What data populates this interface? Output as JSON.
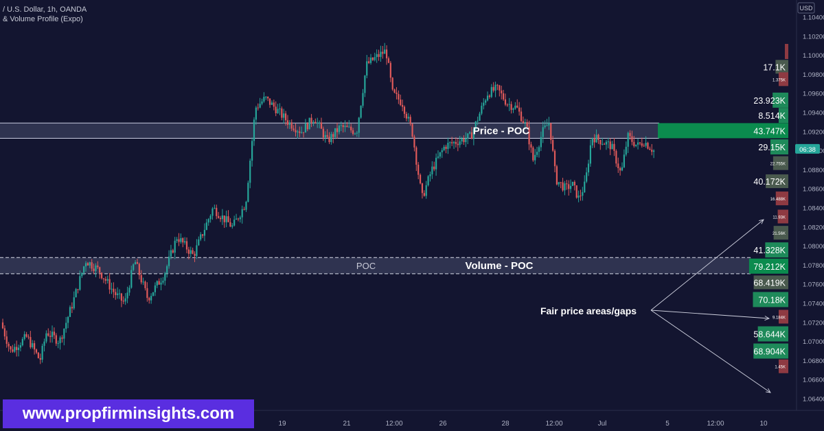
{
  "header": {
    "symbol_line": "/ U.S. Dollar, 1h, OANDA",
    "indicator_line": "& Volume Profile (Expo)"
  },
  "currency": "USD",
  "current_time_badge": "06:38",
  "watermark": "www.propfirminsights.com",
  "colors": {
    "background": "#131530",
    "bull": "#26a69a",
    "bear": "#e05a5a",
    "vp_green": "#1e8a5a",
    "vp_big": "#0b8b4e",
    "vp_red": "#8e3a42",
    "label_bg": "#4a5a4e",
    "zone_fill": "rgba(110,115,150,0.32)",
    "badge": "#26a69a",
    "watermark_bg": "#5a2ee0"
  },
  "annotations": {
    "price_poc": "Price - POC",
    "volume_poc": "Volume - POC",
    "poc_small": "POC",
    "fair_price": "Fair price areas/gaps"
  },
  "chart_data": {
    "type": "candlestick",
    "title": "",
    "y_axis": {
      "range": [
        1.0625,
        1.1057
      ],
      "ticks": [
        "1.10400",
        "1.10200",
        "1.10000",
        "1.09800",
        "1.09600",
        "1.09400",
        "1.09200",
        "1.09000",
        "1.08800",
        "1.08600",
        "1.08400",
        "1.08200",
        "1.08000",
        "1.07800",
        "1.07600",
        "1.07400",
        "1.07200",
        "1.07000",
        "1.06800",
        "1.06600",
        "1.06400"
      ]
    },
    "x_axis": {
      "ticks": [
        "19",
        "21",
        "12:00",
        "26",
        "28",
        "12:00",
        "Jul",
        "5",
        "12:00",
        "10"
      ]
    },
    "price_path": [
      [
        0,
        1.072
      ],
      [
        0.015,
        1.069
      ],
      [
        0.04,
        1.0705
      ],
      [
        0.06,
        1.068
      ],
      [
        0.07,
        1.071
      ],
      [
        0.09,
        1.07
      ],
      [
        0.11,
        1.074
      ],
      [
        0.13,
        1.0785
      ],
      [
        0.15,
        1.0775
      ],
      [
        0.175,
        1.075
      ],
      [
        0.19,
        1.074
      ],
      [
        0.205,
        1.0785
      ],
      [
        0.225,
        1.0745
      ],
      [
        0.25,
        1.077
      ],
      [
        0.27,
        1.081
      ],
      [
        0.295,
        1.079
      ],
      [
        0.325,
        1.084
      ],
      [
        0.355,
        1.082
      ],
      [
        0.375,
        1.0845
      ],
      [
        0.39,
        1.0945
      ],
      [
        0.405,
        1.0955
      ],
      [
        0.42,
        1.0945
      ],
      [
        0.44,
        1.093
      ],
      [
        0.46,
        1.092
      ],
      [
        0.48,
        1.0935
      ],
      [
        0.5,
        1.091
      ],
      [
        0.52,
        1.0925
      ],
      [
        0.545,
        1.092
      ],
      [
        0.56,
        1.099
      ],
      [
        0.575,
        1.0998
      ],
      [
        0.59,
        1.1005
      ],
      [
        0.6,
        1.096
      ],
      [
        0.615,
        1.095
      ],
      [
        0.63,
        1.092
      ],
      [
        0.645,
        1.085
      ],
      [
        0.66,
        1.088
      ],
      [
        0.68,
        1.0905
      ],
      [
        0.7,
        1.091
      ],
      [
        0.72,
        1.0915
      ],
      [
        0.745,
        1.096
      ],
      [
        0.76,
        1.0965
      ],
      [
        0.775,
        1.095
      ],
      [
        0.79,
        1.0945
      ],
      [
        0.805,
        1.0925
      ],
      [
        0.815,
        1.089
      ],
      [
        0.83,
        1.092
      ],
      [
        0.84,
        1.093
      ],
      [
        0.85,
        1.087
      ],
      [
        0.865,
        1.086
      ],
      [
        0.875,
        1.0865
      ],
      [
        0.885,
        1.085
      ],
      [
        0.895,
        1.0865
      ],
      [
        0.905,
        1.0915
      ],
      [
        0.92,
        1.091
      ],
      [
        0.935,
        1.0905
      ],
      [
        0.95,
        1.0875
      ],
      [
        0.96,
        1.0915
      ],
      [
        0.975,
        1.0905
      ],
      [
        0.985,
        1.091
      ],
      [
        1.0,
        1.09
      ]
    ],
    "zones": [
      {
        "name": "price-poc",
        "from": 1.0913,
        "to": 1.0929
      },
      {
        "name": "volume-poc",
        "from": 1.0771,
        "to": 1.0788
      }
    ],
    "volume_profile": [
      {
        "price": 1.0988,
        "label": "17.1K",
        "color": "gray",
        "value": 17.1
      },
      {
        "price": 1.0975,
        "label": "1.375K",
        "color": "red",
        "value": 1.375
      },
      {
        "price": 1.0953,
        "label": "23.923K",
        "color": "green",
        "value": 23.923
      },
      {
        "price": 1.0937,
        "label": "8.514K",
        "color": "green",
        "value": 8.514
      },
      {
        "price": 1.0921,
        "label": "43.747K",
        "color": "big",
        "value": 43.747
      },
      {
        "price": 1.0904,
        "label": "29.15K",
        "color": "green",
        "value": 29.15
      },
      {
        "price": 1.0887,
        "label": "22.755K",
        "color": "gray",
        "value": 22.755
      },
      {
        "price": 1.0868,
        "label": "40.172K",
        "color": "gray",
        "value": 40.172
      },
      {
        "price": 1.085,
        "label": "16.488K",
        "color": "red",
        "value": 16.488
      },
      {
        "price": 1.0831,
        "label": "11.93K",
        "color": "red",
        "value": 11.93
      },
      {
        "price": 1.0814,
        "label": "21.56K",
        "color": "gray",
        "value": 21.56
      },
      {
        "price": 1.0796,
        "label": "41.328K",
        "color": "green",
        "value": 41.328
      },
      {
        "price": 1.0779,
        "label": "79.212K",
        "color": "big",
        "value": 79.212
      },
      {
        "price": 1.0762,
        "label": "68.419K",
        "color": "gray",
        "value": 68.419
      },
      {
        "price": 1.0744,
        "label": "70.18K",
        "color": "green",
        "value": 70.18
      },
      {
        "price": 1.0726,
        "label": "9.184K",
        "color": "red",
        "value": 9.184
      },
      {
        "price": 1.0708,
        "label": "58.644K",
        "color": "green",
        "value": 58.644
      },
      {
        "price": 1.069,
        "label": "68.904K",
        "color": "green",
        "value": 68.904
      },
      {
        "price": 1.0674,
        "label": "1.45K",
        "color": "red",
        "value": 1.45
      }
    ]
  }
}
